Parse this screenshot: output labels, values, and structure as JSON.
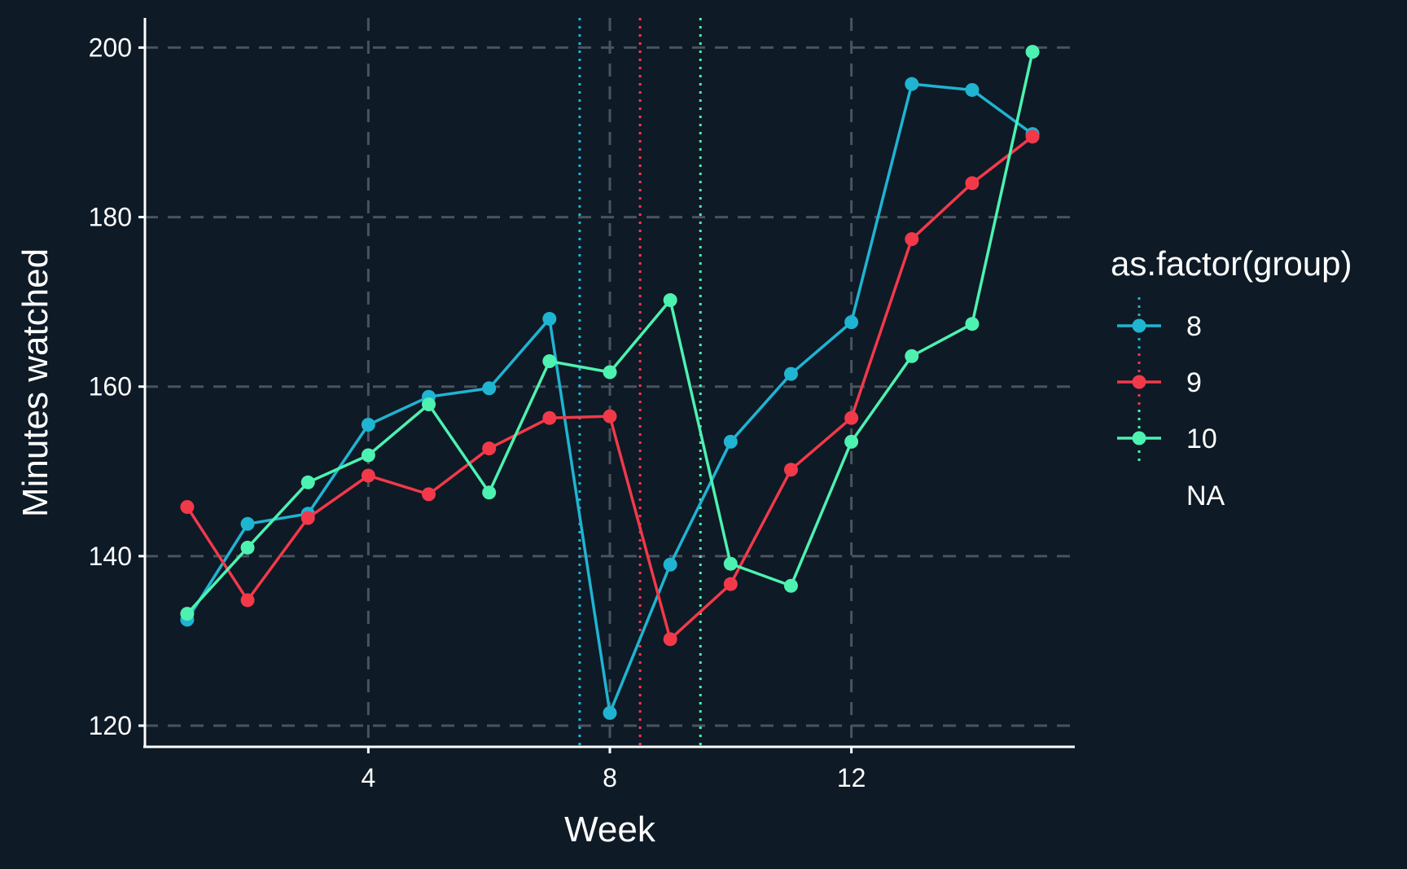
{
  "chart_data": {
    "type": "line",
    "title": "",
    "xlabel": "Week",
    "ylabel": "Minutes watched",
    "x": [
      1,
      2,
      3,
      4,
      5,
      6,
      7,
      8,
      9,
      10,
      11,
      12,
      13,
      14,
      15
    ],
    "xlim": [
      0.3,
      15.7
    ],
    "ylim": [
      117.5,
      203.5
    ],
    "x_ticks": [
      4,
      8,
      12
    ],
    "y_ticks": [
      120,
      140,
      160,
      180,
      200
    ],
    "grid": "dashed",
    "legend_position": "right",
    "legend_title": "as.factor(group)",
    "legend_na_label": "NA",
    "background": "#0e1a26",
    "grid_color": "#4a545e",
    "axis_color": "#ffffff",
    "vertical_dashed_lines": [
      4,
      8,
      12
    ],
    "vertical_dotted_lines": [
      {
        "x": 7.5,
        "color": "#1fb4d2"
      },
      {
        "x": 8.5,
        "color": "#f2394a"
      },
      {
        "x": 9.5,
        "color": "#4df2b0"
      }
    ],
    "series": [
      {
        "name": "8",
        "color": "#1fb4d2",
        "values": [
          132.5,
          143.8,
          145.0,
          155.5,
          158.8,
          159.8,
          168.0,
          121.5,
          139.0,
          153.5,
          161.5,
          167.6,
          195.7,
          195.0,
          189.8
        ]
      },
      {
        "name": "9",
        "color": "#f2394a",
        "values": [
          145.8,
          134.8,
          144.5,
          149.5,
          147.3,
          152.7,
          156.3,
          156.5,
          130.2,
          136.7,
          150.2,
          156.3,
          177.4,
          184.0,
          189.5
        ]
      },
      {
        "name": "10",
        "color": "#4df2b0",
        "values": [
          133.2,
          141.0,
          148.7,
          151.9,
          157.9,
          147.5,
          163.0,
          161.7,
          170.2,
          139.1,
          136.5,
          153.5,
          163.6,
          167.4,
          199.5
        ]
      }
    ]
  }
}
